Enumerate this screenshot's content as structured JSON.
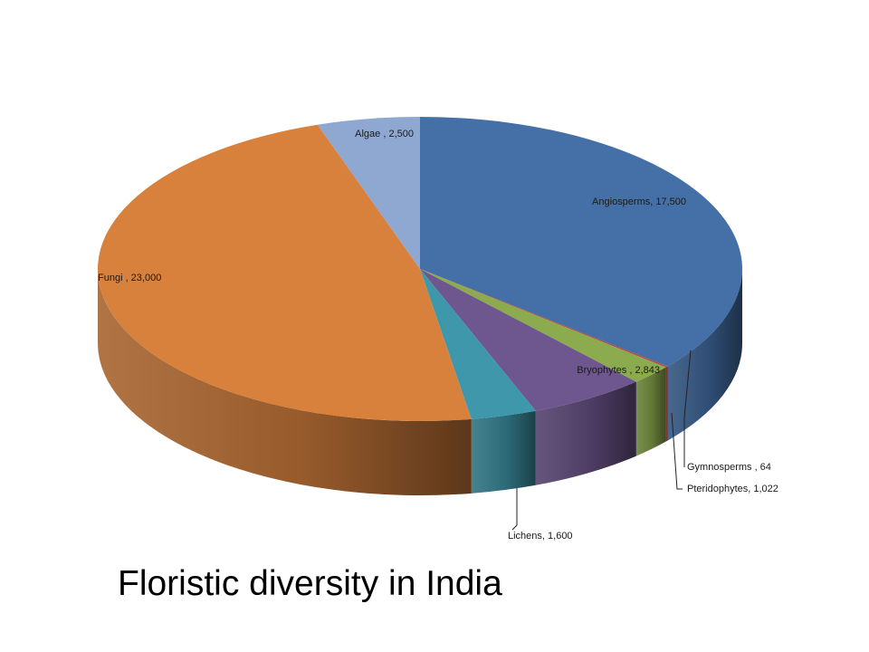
{
  "slide": {
    "title": "Floristic diversity in India"
  },
  "chart_data": {
    "type": "pie",
    "style": "3d",
    "title": "Floristic diversity in India",
    "label_format": "name, value",
    "slices": [
      {
        "name": "Angiosperms",
        "value": 17500,
        "label": "Angiosperms, 17,500",
        "color": "#4470a7"
      },
      {
        "name": "Gymnosperms",
        "value": 64,
        "label": "Gymnosperms , 64",
        "color": "#b8473f"
      },
      {
        "name": "Pteridophytes",
        "value": 1022,
        "label": "Pteridophytes, 1,022",
        "color": "#8cab4e"
      },
      {
        "name": "Bryophytes",
        "value": 2843,
        "label": "Bryophytes , 2,843",
        "color": "#6e568e"
      },
      {
        "name": "Lichens",
        "value": 1600,
        "label": "Lichens, 1,600",
        "color": "#3f97ab"
      },
      {
        "name": "Fungi",
        "value": 23000,
        "label": "Fungi , 23,000",
        "color": "#d8813d"
      },
      {
        "name": "Algae",
        "value": 2500,
        "label": "Algae , 2,500",
        "color": "#8fa8d1"
      }
    ]
  }
}
